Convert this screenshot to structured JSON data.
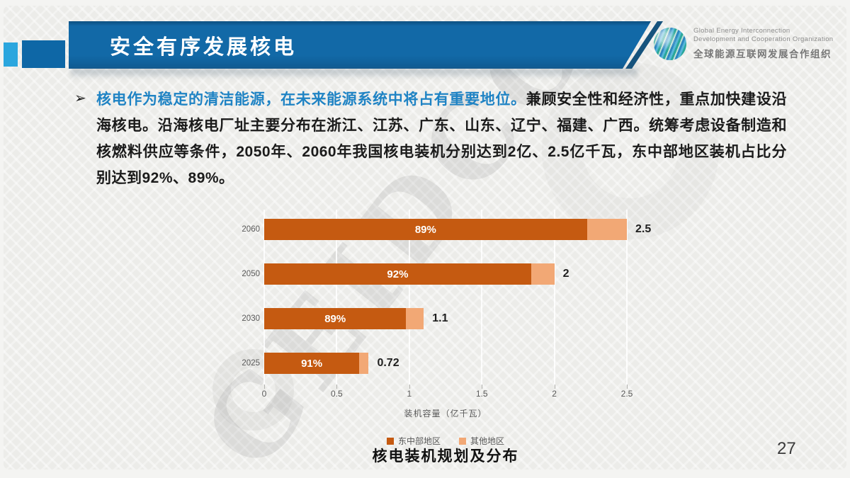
{
  "slide": {
    "header": {
      "title": "安全有序发展核电"
    },
    "logo": {
      "line1": "Global Energy Interconnection",
      "line2": "Development and Cooperation Organization",
      "line3": "全球能源互联网发展合作组织"
    },
    "bullet": {
      "marker": "➢",
      "highlight": "核电作为稳定的清洁能源，在未来能源系统中将占有重要地位。",
      "body": "兼顾安全性和经济性，重点加快建设沿海核电。沿海核电厂址主要分布在浙江、江苏、广东、山东、辽宁、福建、广西。统筹考虑设备制造和核燃料供应等条件，2050年、2060年我国核电装机分别达到2亿、2.5亿千瓦，东中部地区装机占比分别达到92%、89%。"
    },
    "caption": "核电装机规划及分布",
    "page_number": "27",
    "watermark": "GEIDCO"
  },
  "chart_data": {
    "type": "bar",
    "orientation": "horizontal",
    "title": "核电装机规划及分布",
    "categories": [
      "2060",
      "2050",
      "2030",
      "2025"
    ],
    "totals": [
      2.5,
      2,
      1.1,
      0.72
    ],
    "total_labels": [
      "2.5",
      "2",
      "1.1",
      "0.72"
    ],
    "series": [
      {
        "name": "东中部地区",
        "color": "#C55A11",
        "share_labels": [
          "89%",
          "92%",
          "89%",
          "91%"
        ],
        "values": [
          2.225,
          1.84,
          0.979,
          0.655
        ]
      },
      {
        "name": "其他地区",
        "color": "#F2A875",
        "values": [
          0.275,
          0.16,
          0.121,
          0.065
        ]
      }
    ],
    "xlabel": "装机容量（亿千瓦）",
    "xticks": [
      "0",
      "0.5",
      "1",
      "1.5",
      "2",
      "2.5"
    ],
    "xlim": [
      0,
      2.5
    ],
    "grid": true,
    "legend_position": "bottom"
  }
}
